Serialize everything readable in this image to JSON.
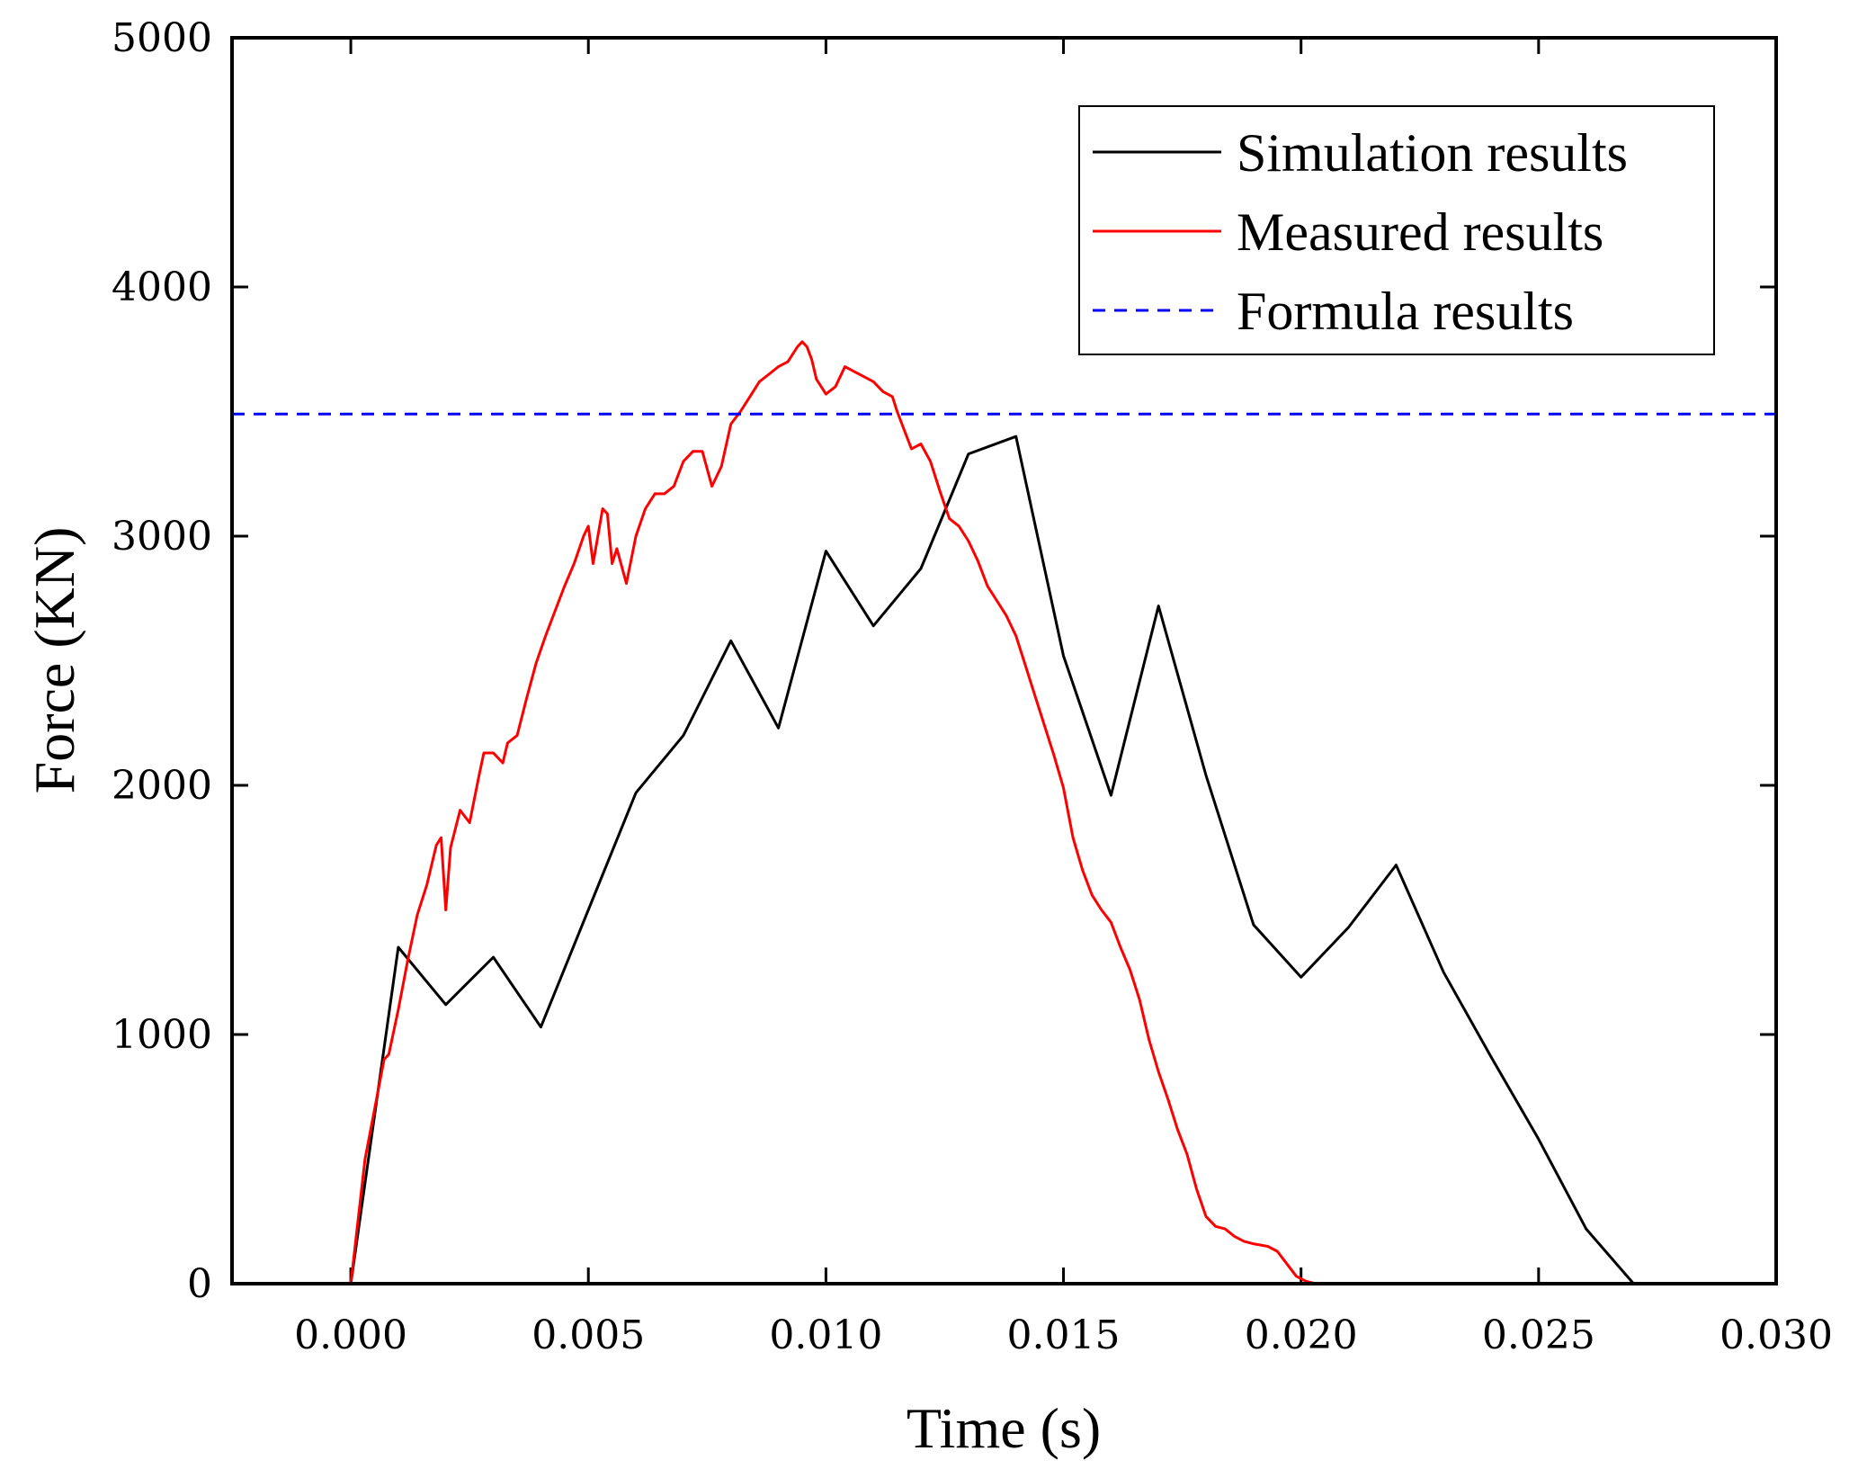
{
  "chart_data": {
    "type": "line",
    "title": "",
    "xlabel": "Time (s)",
    "ylabel": "Force (KN)",
    "xlim": [
      -0.0025,
      0.03
    ],
    "ylim": [
      0,
      5000
    ],
    "x_ticks": [
      "0.000",
      "0.005",
      "0.010",
      "0.015",
      "0.020",
      "0.025",
      "0.030"
    ],
    "x_tick_values": [
      0,
      0.005,
      0.01,
      0.015,
      0.02,
      0.025,
      0.03
    ],
    "y_ticks": [
      "0",
      "1000",
      "2000",
      "3000",
      "4000",
      "5000"
    ],
    "y_tick_values": [
      0,
      1000,
      2000,
      3000,
      4000,
      5000
    ],
    "legend_position": "top-right",
    "series": [
      {
        "name": "Simulation results",
        "color": "#000000",
        "style": "solid",
        "x": [
          0,
          0.001,
          0.002,
          0.003,
          0.004,
          0.005,
          0.006,
          0.007,
          0.008,
          0.009,
          0.01,
          0.011,
          0.012,
          0.013,
          0.014,
          0.015,
          0.016,
          0.017,
          0.018,
          0.019,
          0.02,
          0.021,
          0.022,
          0.023,
          0.024,
          0.025,
          0.026,
          0.027,
          0.028,
          0.03
        ],
        "y": [
          0,
          1350,
          1120,
          1310,
          1030,
          1500,
          1970,
          2200,
          2580,
          2230,
          2940,
          2640,
          2870,
          3330,
          3400,
          2520,
          1960,
          2720,
          2040,
          1440,
          1230,
          1430,
          1680,
          1250,
          910,
          580,
          220,
          0,
          0,
          0
        ]
      },
      {
        "name": "Measured results",
        "color": "#ff0000",
        "style": "solid",
        "x": [
          0,
          0.0003,
          0.0007,
          0.0008,
          0.001,
          0.0012,
          0.0014,
          0.0016,
          0.0018,
          0.0019,
          0.002,
          0.0021,
          0.0023,
          0.0025,
          0.0027,
          0.0028,
          0.003,
          0.0032,
          0.0033,
          0.0035,
          0.0037,
          0.0039,
          0.0041,
          0.0043,
          0.0045,
          0.0047,
          0.0049,
          0.005,
          0.0051,
          0.0052,
          0.0053,
          0.0054,
          0.0055,
          0.0056,
          0.0058,
          0.006,
          0.0062,
          0.0064,
          0.0066,
          0.0068,
          0.007,
          0.0072,
          0.0074,
          0.0075,
          0.0076,
          0.0078,
          0.008,
          0.0082,
          0.0084,
          0.0086,
          0.0088,
          0.009,
          0.0092,
          0.0094,
          0.0095,
          0.0096,
          0.0097,
          0.0098,
          0.01,
          0.0102,
          0.0104,
          0.0106,
          0.0108,
          0.011,
          0.0112,
          0.0114,
          0.0115,
          0.0116,
          0.0118,
          0.012,
          0.0122,
          0.0124,
          0.0126,
          0.0128,
          0.013,
          0.0132,
          0.0134,
          0.0136,
          0.0138,
          0.014,
          0.0142,
          0.0144,
          0.0146,
          0.0148,
          0.015,
          0.0152,
          0.0154,
          0.0156,
          0.0158,
          0.016,
          0.0162,
          0.0164,
          0.0166,
          0.0168,
          0.017,
          0.0172,
          0.0174,
          0.0176,
          0.0178,
          0.018,
          0.0182,
          0.0184,
          0.0186,
          0.0188,
          0.019,
          0.0193,
          0.0195,
          0.0197,
          0.0199,
          0.0201,
          0.0203,
          0.0205,
          0.021,
          0.022,
          0.025,
          0.03
        ],
        "y": [
          0,
          500,
          900,
          920,
          1100,
          1300,
          1480,
          1600,
          1760,
          1790,
          1500,
          1750,
          1900,
          1850,
          2040,
          2130,
          2130,
          2090,
          2170,
          2200,
          2350,
          2490,
          2600,
          2700,
          2800,
          2890,
          3000,
          3040,
          2890,
          3000,
          3110,
          3090,
          2890,
          2950,
          2810,
          3000,
          3110,
          3170,
          3170,
          3200,
          3300,
          3340,
          3340,
          3270,
          3200,
          3280,
          3450,
          3500,
          3560,
          3620,
          3650,
          3680,
          3700,
          3760,
          3780,
          3760,
          3710,
          3630,
          3570,
          3600,
          3680,
          3660,
          3640,
          3620,
          3580,
          3560,
          3500,
          3450,
          3350,
          3370,
          3300,
          3180,
          3070,
          3040,
          2980,
          2900,
          2800,
          2740,
          2680,
          2600,
          2480,
          2360,
          2240,
          2120,
          1990,
          1790,
          1660,
          1560,
          1500,
          1450,
          1350,
          1260,
          1140,
          980,
          850,
          740,
          620,
          520,
          380,
          270,
          230,
          220,
          190,
          170,
          160,
          150,
          130,
          80,
          30,
          10,
          0,
          0,
          0,
          0,
          0,
          0
        ]
      },
      {
        "name": "Formula results",
        "color": "#0000ff",
        "style": "dashed",
        "x": [
          -0.0025,
          0.03
        ],
        "y": [
          3490,
          3490
        ]
      }
    ]
  }
}
